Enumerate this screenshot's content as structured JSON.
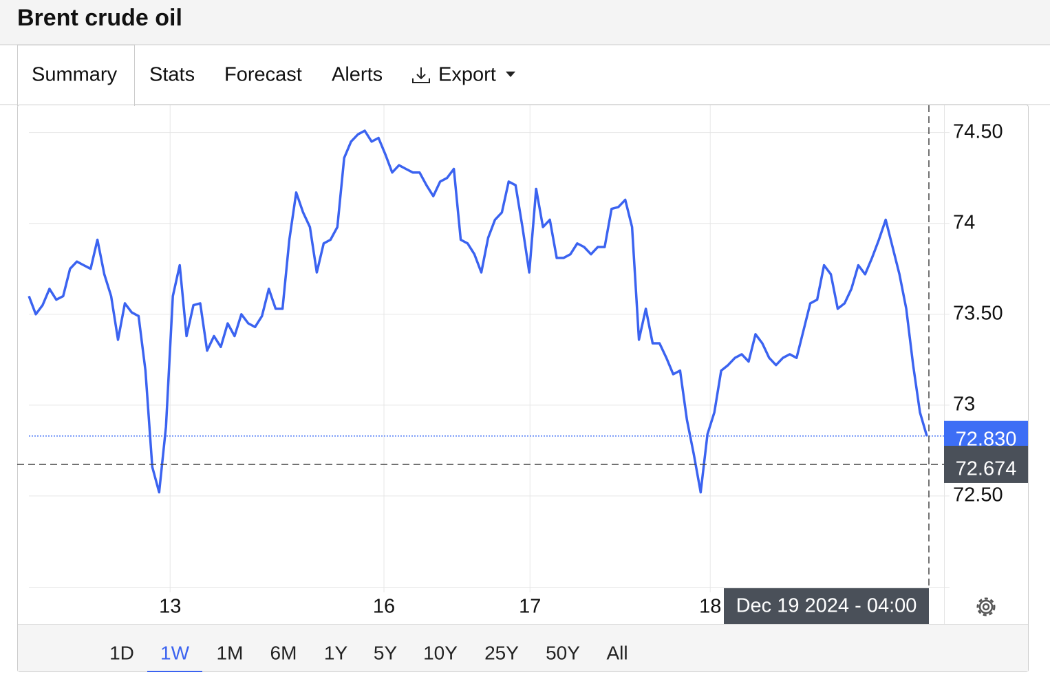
{
  "header": {
    "title": "Brent crude oil"
  },
  "tabs": {
    "items": [
      "Summary",
      "Stats",
      "Forecast",
      "Alerts",
      "Export"
    ],
    "active": 0
  },
  "chart_data": {
    "type": "line",
    "series": [
      {
        "name": "Brent crude oil",
        "color": "#3b63f0",
        "values": [
          73.6,
          73.5,
          73.55,
          73.64,
          73.58,
          73.6,
          73.75,
          73.79,
          73.77,
          73.75,
          73.91,
          73.72,
          73.6,
          73.36,
          73.56,
          73.51,
          73.49,
          73.19,
          72.66,
          72.52,
          72.88,
          73.6,
          73.77,
          73.38,
          73.55,
          73.56,
          73.3,
          73.38,
          73.32,
          73.45,
          73.38,
          73.5,
          73.45,
          73.43,
          73.49,
          73.64,
          73.53,
          73.53,
          73.91,
          74.17,
          74.06,
          73.98,
          73.73,
          73.89,
          73.91,
          73.98,
          74.36,
          74.45,
          74.49,
          74.51,
          74.45,
          74.47,
          74.38,
          74.28,
          74.32,
          74.3,
          74.28,
          74.28,
          74.21,
          74.15,
          74.23,
          74.25,
          74.3,
          73.91,
          73.89,
          73.83,
          73.73,
          73.92,
          74.02,
          74.06,
          74.23,
          74.21,
          73.98,
          73.73,
          74.19,
          73.98,
          74.02,
          73.81,
          73.81,
          73.83,
          73.89,
          73.87,
          73.83,
          73.87,
          73.87,
          74.08,
          74.09,
          74.13,
          73.98,
          73.36,
          73.53,
          73.34,
          73.34,
          73.26,
          73.17,
          73.19,
          72.92,
          72.73,
          72.52,
          72.84,
          72.96,
          73.19,
          73.22,
          73.26,
          73.28,
          73.24,
          73.39,
          73.34,
          73.26,
          73.22,
          73.26,
          73.28,
          73.26,
          73.41,
          73.56,
          73.58,
          73.77,
          73.72,
          73.53,
          73.56,
          73.64,
          73.77,
          73.72,
          73.81,
          73.91,
          74.02,
          73.87,
          73.72,
          73.53,
          73.22,
          72.96,
          72.83
        ]
      }
    ],
    "xlim": [
      0,
      131
    ],
    "xticks": [
      {
        "value": 20.6,
        "label": "13"
      },
      {
        "value": 51.8,
        "label": "16"
      },
      {
        "value": 73.1,
        "label": "17"
      },
      {
        "value": 99.4,
        "label": "18"
      }
    ],
    "ylim": [
      72,
      74.65
    ],
    "yticks": [
      {
        "value": 72.5,
        "label": "72.50"
      },
      73,
      {
        "value": 73.5,
        "label": "73.50"
      },
      74,
      {
        "value": 74.5,
        "label": "74.50"
      }
    ],
    "grid": true,
    "last_price": {
      "value": 72.83,
      "value_label": "72.830",
      "color": "#3d6ef5"
    },
    "crosshair": {
      "y": 72.674,
      "y_label": "72.674",
      "x_label": "Dec 19 2024 - 04:00"
    }
  },
  "ranges": {
    "items": [
      "1D",
      "1W",
      "1M",
      "6M",
      "1Y",
      "5Y",
      "10Y",
      "25Y",
      "50Y",
      "All"
    ],
    "active": 1
  }
}
